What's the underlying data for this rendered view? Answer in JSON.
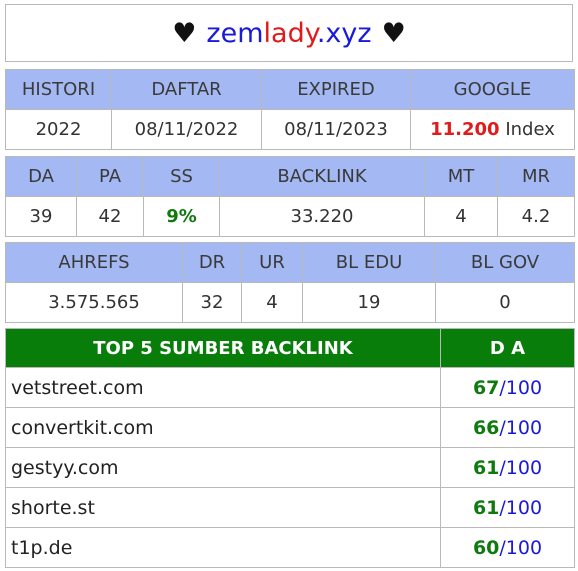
{
  "title": {
    "heart_left": "♥",
    "part1": "zem",
    "part2": "lady",
    "part3": ".xyz",
    "heart_right": "♥"
  },
  "table1": {
    "headers": [
      "HISTORI",
      "DAFTAR",
      "EXPIRED",
      "GOOGLE"
    ],
    "values": {
      "histori": "2022",
      "daftar": "08/11/2022",
      "expired": "08/11/2023",
      "google_count": "11.200",
      "google_suffix": " Index"
    }
  },
  "table2": {
    "headers": [
      "DA",
      "PA",
      "SS",
      "BACKLINK",
      "MT",
      "MR"
    ],
    "values": {
      "da": "39",
      "pa": "42",
      "ss": "9%",
      "backlink": "33.220",
      "mt": "4",
      "mr": "4.2"
    }
  },
  "table3": {
    "headers": [
      "AHREFS",
      "DR",
      "UR",
      "BL EDU",
      "BL GOV"
    ],
    "values": {
      "ahrefs": "3.575.565",
      "dr": "32",
      "ur": "4",
      "bl_edu": "19",
      "bl_gov": "0"
    }
  },
  "top5": {
    "header_left": "TOP 5 SUMBER BACKLINK",
    "header_right": "D A",
    "rows": [
      {
        "site": "vetstreet.com",
        "da": "67",
        "max": "/100"
      },
      {
        "site": "convertkit.com",
        "da": "66",
        "max": "/100"
      },
      {
        "site": "gestyy.com",
        "da": "61",
        "max": "/100"
      },
      {
        "site": "shorte.st",
        "da": "61",
        "max": "/100"
      },
      {
        "site": "t1p.de",
        "da": "60",
        "max": "/100"
      }
    ]
  }
}
